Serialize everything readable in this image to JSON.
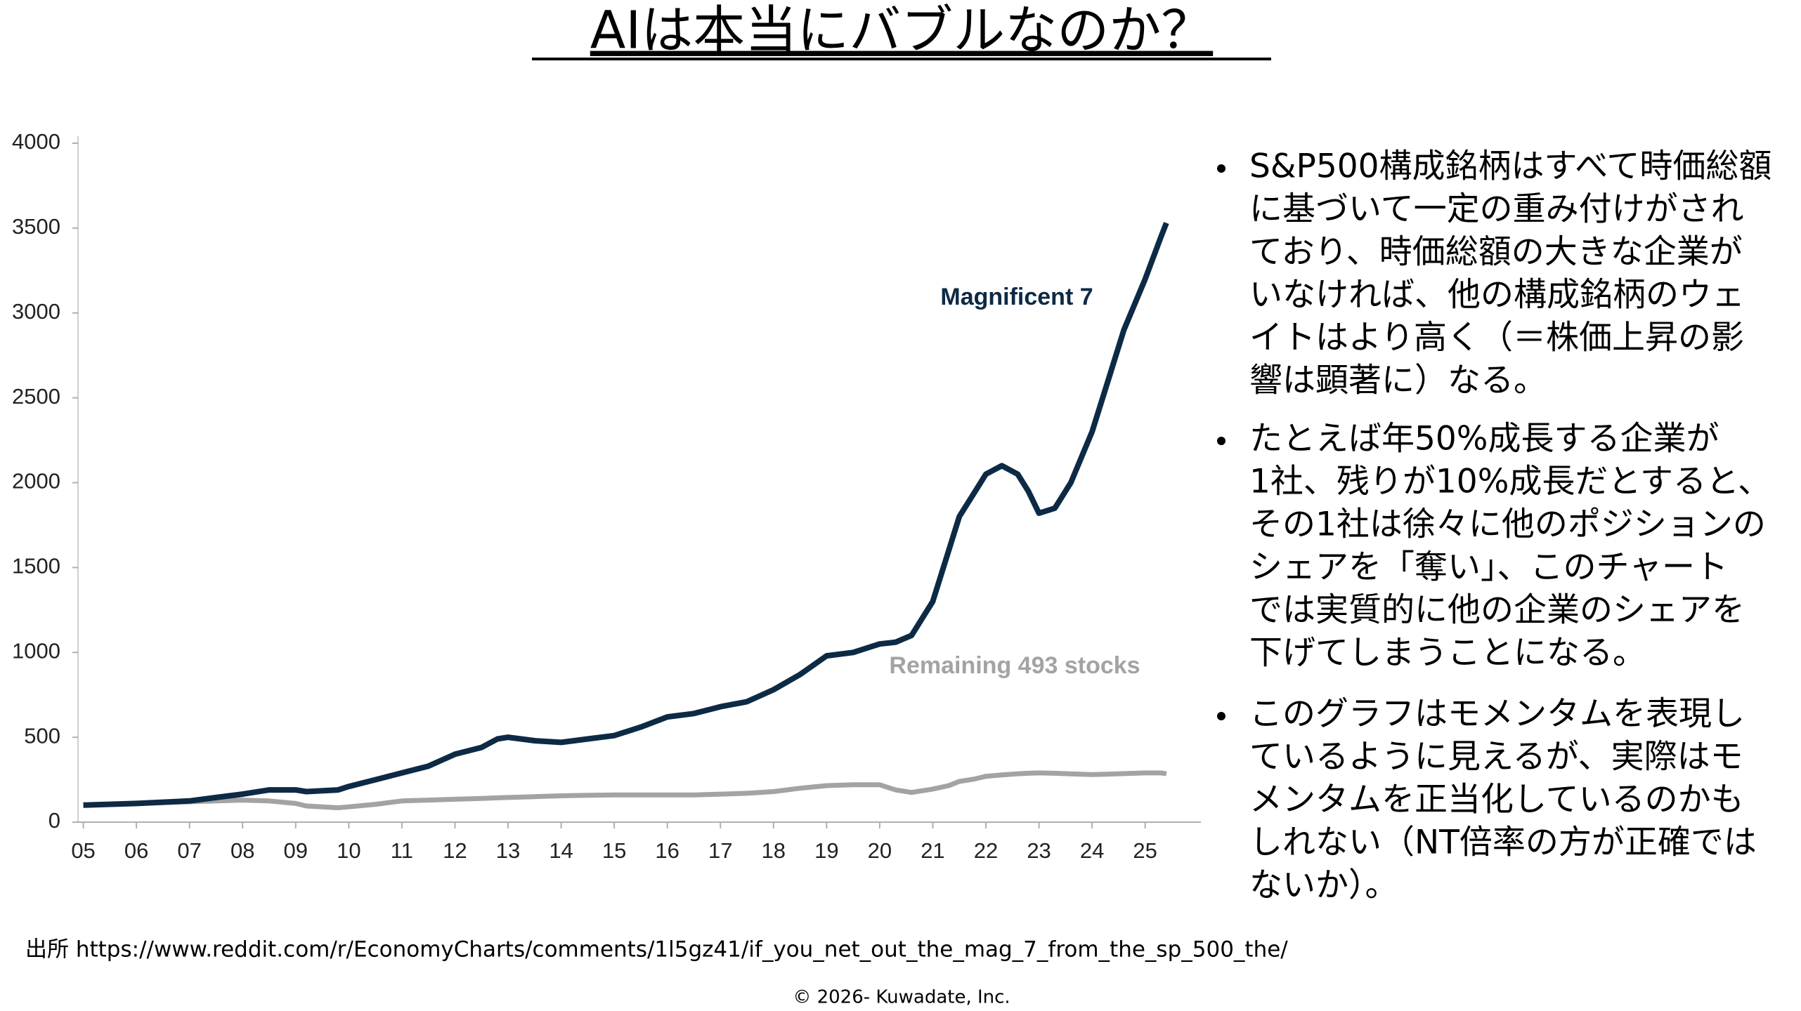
{
  "title": "AIは本当にバブルなのか？",
  "bullets": [
    [
      "S&P500構成銘柄はすべて時価総額",
      "に基づいて一定の重み付けがされ",
      "ており、時価総額の大きな企業が",
      "いなければ、他の構成銘柄のウェ",
      "イトはより高く（＝株価上昇の影",
      "響は顕著に）なる。"
    ],
    [
      "たとえば年50%成長する企業が",
      "1社、残りが10%成長だとすると、",
      "その1社は徐々に他のポジションの",
      "シェアを「奪い」、このチャート",
      "では実質的に他の企業のシェアを",
      "下げてしまうことになる。"
    ],
    [
      "このグラフはモメンタムを表現し",
      "ているように見えるが、実際はモ",
      "メンタムを正当化しているのかも",
      "しれない（NT倍率の方が正確では",
      "ないか）。"
    ]
  ],
  "source": "出所 https://www.reddit.com/r/EconomyCharts/comments/1l5gz41/if_you_net_out_the_mag_7_from_the_sp_500_the/",
  "copyright": "© 2026- Kuwadate, Inc.",
  "chart_data": {
    "type": "line",
    "x": [
      5,
      6,
      7,
      7.5,
      8,
      8.5,
      9,
      9.2,
      9.8,
      10,
      10.5,
      11,
      11.5,
      12,
      12.5,
      12.8,
      13,
      13.5,
      14,
      14.5,
      15,
      15.5,
      16,
      16.5,
      17,
      17.5,
      18,
      18.5,
      19,
      19.5,
      20,
      20.3,
      20.6,
      21,
      21.3,
      21.5,
      21.8,
      22,
      22.3,
      22.6,
      22.8,
      23,
      23.3,
      23.6,
      24,
      24.3,
      24.6,
      25,
      25.3,
      25.4
    ],
    "series": [
      {
        "name": "Magnificent 7",
        "color": "#0d2a45",
        "values": [
          100,
          110,
          125,
          145,
          165,
          190,
          190,
          180,
          190,
          210,
          250,
          290,
          330,
          400,
          440,
          490,
          500,
          480,
          470,
          490,
          510,
          560,
          620,
          640,
          680,
          710,
          780,
          870,
          980,
          1000,
          1050,
          1060,
          1100,
          1300,
          1600,
          1800,
          1950,
          2050,
          2100,
          2050,
          1950,
          1820,
          1850,
          2000,
          2300,
          2600,
          2900,
          3200,
          3450,
          3530
        ]
      },
      {
        "name": "Remaining 493 stocks",
        "color": "#a3a3a3",
        "values": [
          100,
          110,
          120,
          125,
          130,
          125,
          110,
          95,
          85,
          90,
          105,
          125,
          130,
          135,
          140,
          143,
          145,
          150,
          155,
          158,
          160,
          160,
          160,
          160,
          165,
          170,
          180,
          200,
          215,
          220,
          220,
          190,
          175,
          195,
          215,
          240,
          255,
          270,
          278,
          285,
          288,
          290,
          288,
          284,
          280,
          283,
          286,
          290,
          290,
          285
        ]
      }
    ],
    "xlim": [
      4.9,
      26.05
    ],
    "xticks": [
      {
        "value": 5,
        "label": "05"
      },
      {
        "value": 6,
        "label": "06"
      },
      {
        "value": 7,
        "label": "07"
      },
      {
        "value": 8,
        "label": "08"
      },
      {
        "value": 9,
        "label": "09"
      },
      10,
      11,
      12,
      13,
      14,
      15,
      16,
      17,
      18,
      19,
      20,
      21,
      22,
      23,
      24,
      25
    ],
    "ylim": [
      0,
      4000
    ],
    "yticks": [
      0,
      500,
      1000,
      1500,
      2000,
      2500,
      3000,
      3500,
      4000
    ],
    "grid": false
  }
}
